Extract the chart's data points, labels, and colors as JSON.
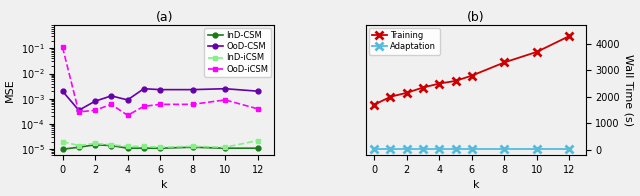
{
  "k_values": [
    0,
    1,
    2,
    3,
    4,
    5,
    6,
    8,
    10,
    12
  ],
  "InD_CSM": [
    1e-05,
    1.2e-05,
    1.5e-05,
    1.4e-05,
    1.1e-05,
    1.1e-05,
    1.1e-05,
    1.2e-05,
    1.1e-05,
    1.1e-05
  ],
  "OoD_CSM": [
    0.002,
    0.00035,
    0.0008,
    0.0013,
    0.0009,
    0.0025,
    0.0023,
    0.0023,
    0.0025,
    0.002
  ],
  "InD_iCSM": [
    2e-05,
    1.4e-05,
    1.7e-05,
    1.5e-05,
    1.3e-05,
    1.3e-05,
    1.2e-05,
    1.3e-05,
    1.2e-05,
    2.2e-05
  ],
  "OoD_iCSM": [
    0.11,
    0.0003,
    0.00035,
    0.0006,
    0.00022,
    0.0005,
    0.0006,
    0.0006,
    0.0009,
    0.0004
  ],
  "training_time": [
    1700,
    2000,
    2150,
    2350,
    2500,
    2600,
    2800,
    3300,
    3700,
    4300
  ],
  "adaptation_time": [
    20,
    20,
    20,
    20,
    20,
    20,
    20,
    20,
    20,
    20
  ],
  "color_InD_CSM": "#1a7a1a",
  "color_OoD_CSM": "#6600aa",
  "color_InD_iCSM": "#88ee88",
  "color_OoD_iCSM": "#ff00ff",
  "color_training": "#cc0000",
  "color_adaptation": "#55bbdd",
  "bg_color": "#f0f0f0",
  "title_a": "(a)",
  "title_b": "(b)",
  "ylabel_a": "MSE",
  "ylabel_b": "Wall Time (s)",
  "xlabel": "k",
  "legend_a": [
    "InD-CSM",
    "OoD-CSM",
    "InD-iCSM",
    "OoD-iCSM"
  ],
  "legend_b": [
    "Training",
    "Adaptation"
  ],
  "ylim_a_low": 6e-06,
  "ylim_a_high": 0.8,
  "ylim_b": [
    -200,
    4700
  ],
  "yticks_b": [
    0,
    1000,
    2000,
    3000,
    4000
  ],
  "xticks": [
    0,
    2,
    4,
    6,
    8,
    10,
    12
  ],
  "xlim": [
    -0.5,
    13.0
  ]
}
